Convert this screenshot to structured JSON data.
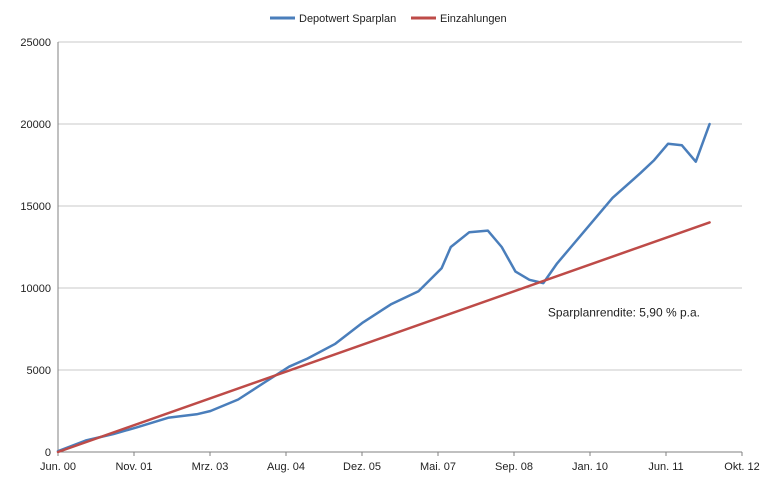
{
  "chart_data": {
    "type": "line",
    "x_ticks": [
      "Jun. 00",
      "Nov. 01",
      "Mrz. 03",
      "Aug. 04",
      "Dez. 05",
      "Mai. 07",
      "Sep. 08",
      "Jan. 10",
      "Jun. 11",
      "Okt. 12"
    ],
    "y_ticks": [
      "0",
      "5000",
      "10000",
      "15000",
      "20000",
      "25000"
    ],
    "ylim": [
      0,
      25000
    ],
    "xlim": [
      "2000-06",
      "2012-10"
    ],
    "grid": "horizontal",
    "legend_position": "top-center",
    "series": [
      {
        "name": "Depotwert Sparplan",
        "color": "#4A7EBB",
        "x": [
          "2000-06",
          "2000-12",
          "2001-06",
          "2001-11",
          "2002-06",
          "2002-12",
          "2003-03",
          "2003-09",
          "2004-03",
          "2004-08",
          "2004-12",
          "2005-06",
          "2005-12",
          "2006-06",
          "2006-12",
          "2007-05",
          "2007-07",
          "2007-11",
          "2008-03",
          "2008-06",
          "2008-09",
          "2008-12",
          "2009-03",
          "2009-06",
          "2009-09",
          "2009-12",
          "2010-06",
          "2010-12",
          "2011-03",
          "2011-06",
          "2011-09",
          "2011-12",
          "2012-03"
        ],
        "values": [
          50,
          700,
          1100,
          1500,
          2100,
          2300,
          2500,
          3200,
          4300,
          5200,
          5700,
          6600,
          7900,
          9000,
          9800,
          11200,
          12500,
          13400,
          13500,
          12500,
          11000,
          10500,
          10300,
          11500,
          12500,
          13500,
          15500,
          17000,
          17800,
          18800,
          18700,
          17700,
          20000
        ]
      },
      {
        "name": "Einzahlungen",
        "color": "#BE4B48",
        "x": [
          "2000-06",
          "2012-03"
        ],
        "values": [
          0,
          14000
        ]
      }
    ],
    "annotations": [
      {
        "text": "Sparplanrendite: 5,90 % p.a.",
        "x": "2009-04",
        "y": 8500
      }
    ]
  }
}
